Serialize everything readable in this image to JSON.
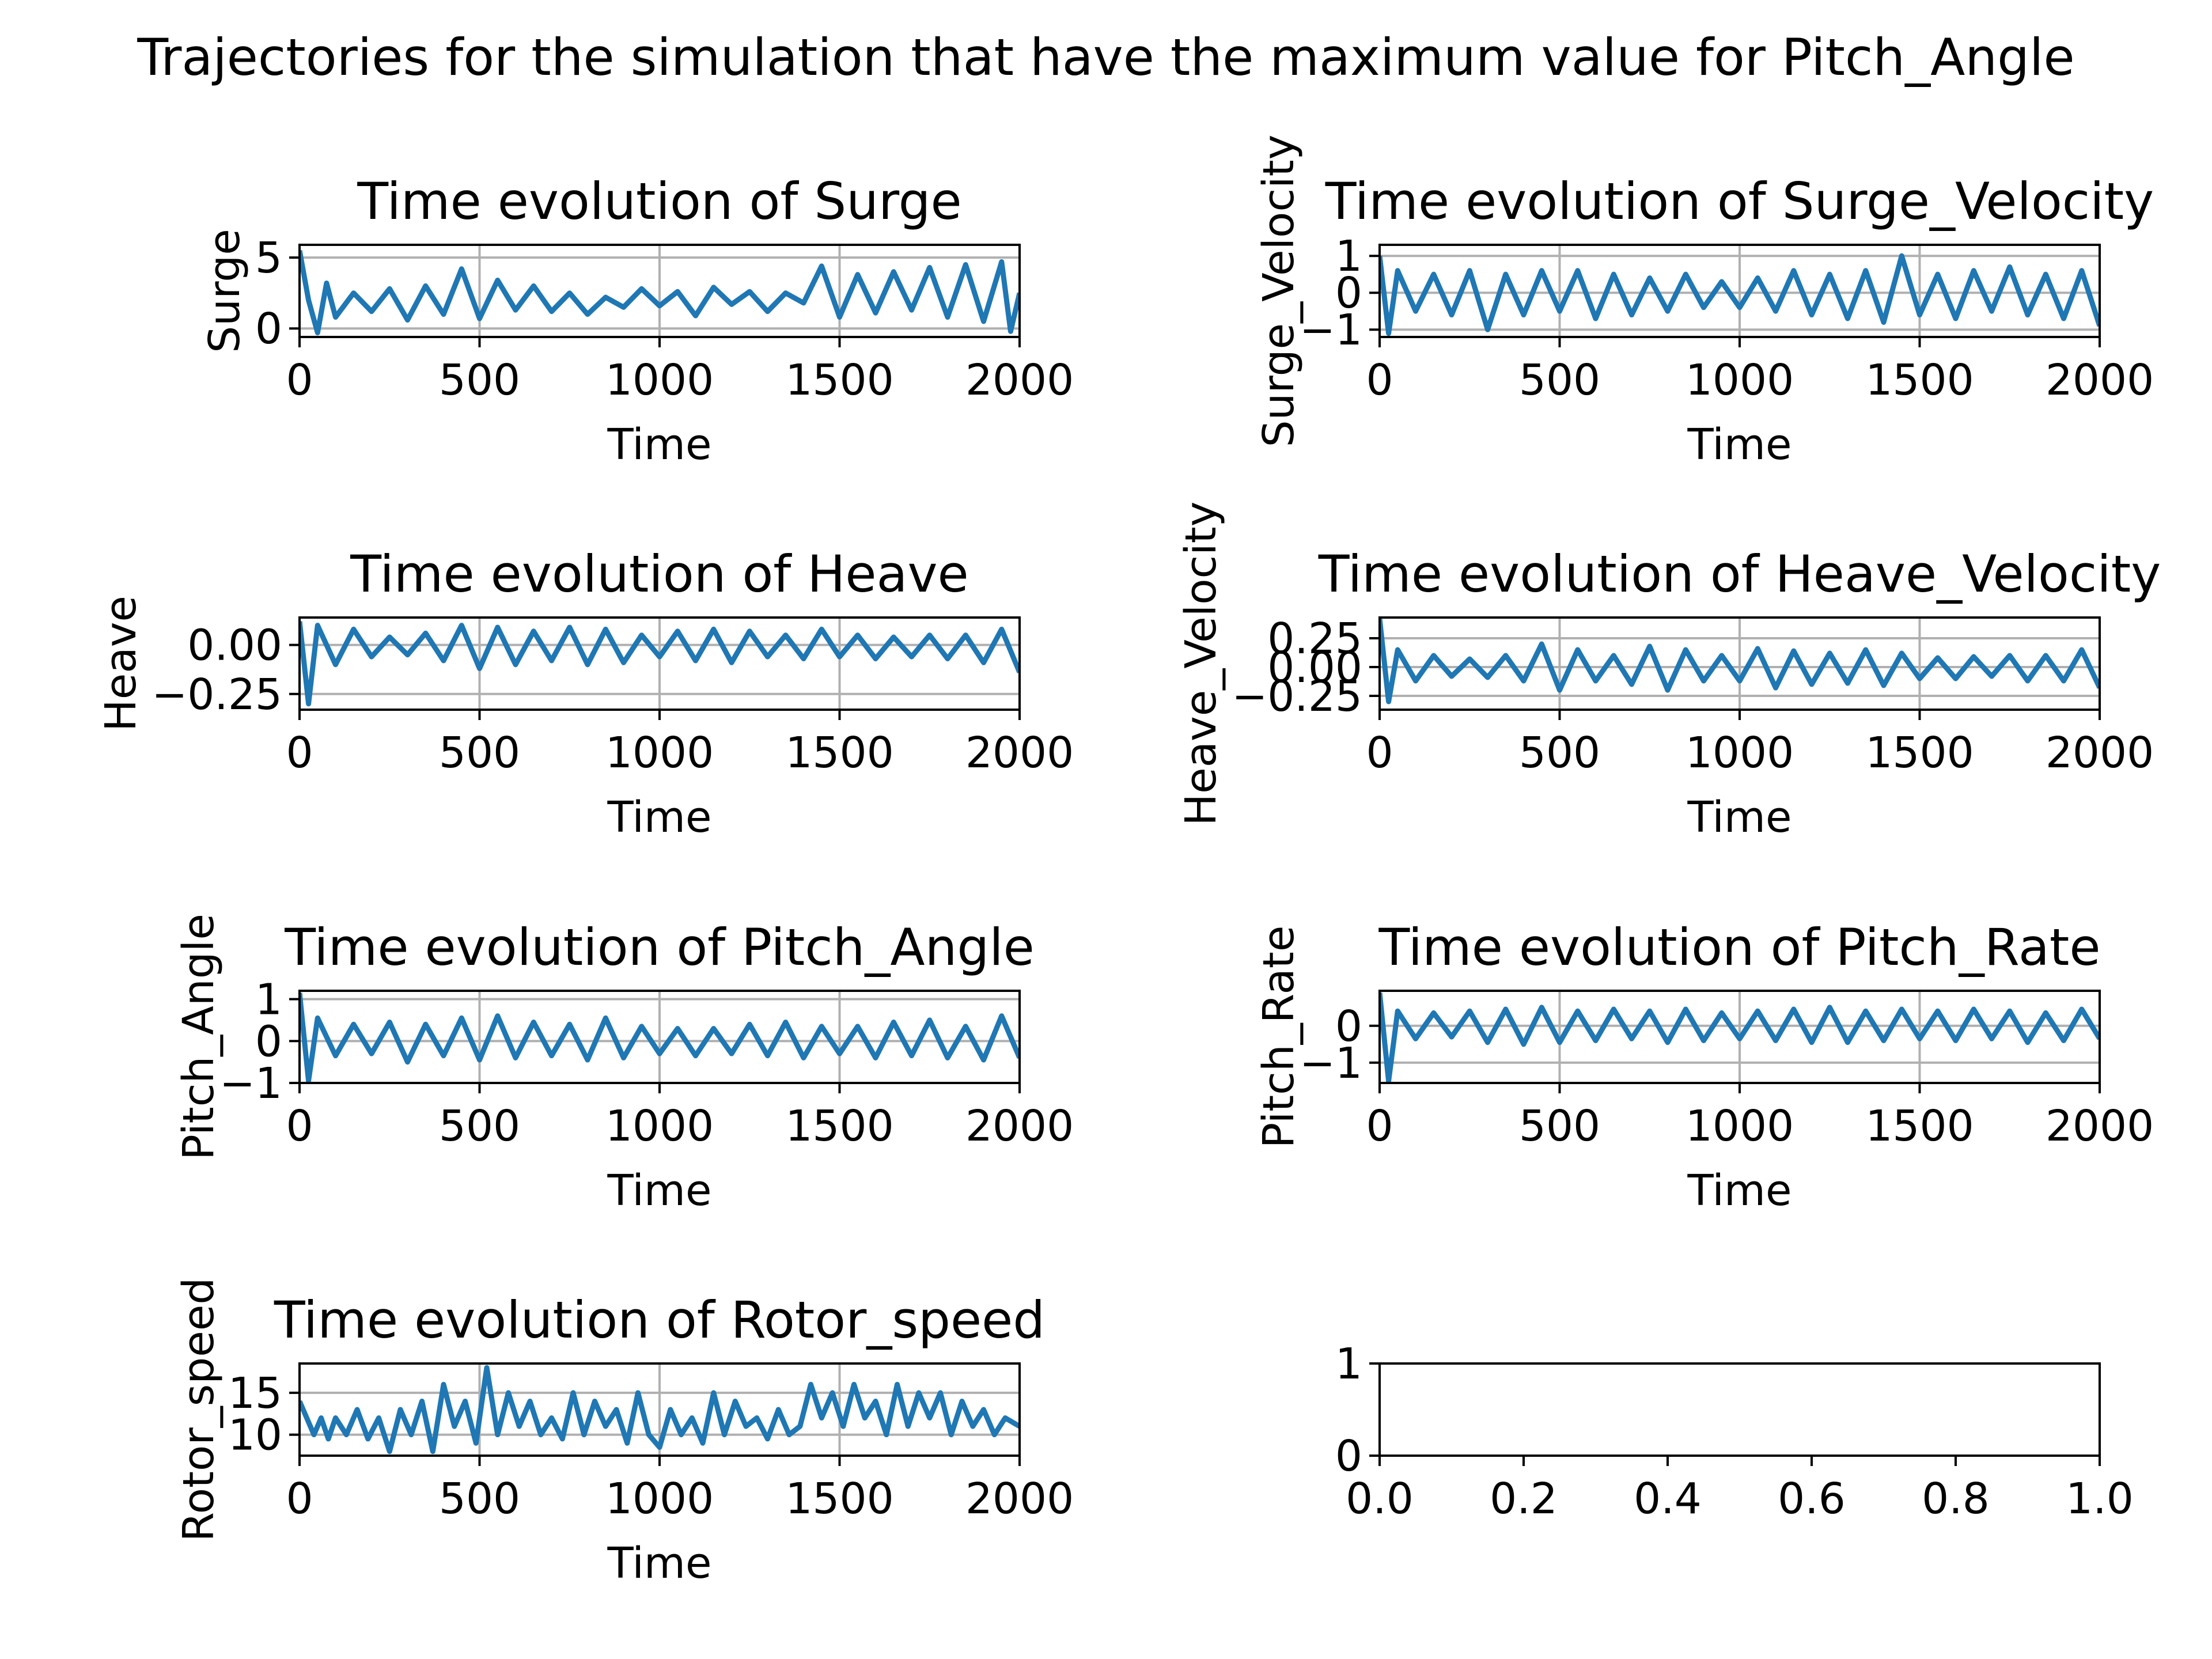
{
  "suptitle": "Trajectories for the simulation that have the maximum value for Pitch_Angle",
  "colors": {
    "line": "#1f77b4",
    "grid": "#b0b0b0",
    "axes": "#000000",
    "background": "#ffffff"
  },
  "chart_data": [
    {
      "type": "line",
      "title": "Time evolution of Surge",
      "xlabel": "Time",
      "ylabel": "Surge",
      "xlim": [
        0,
        2000
      ],
      "ylim": [
        -0.6,
        5.9
      ],
      "xticks": [
        0,
        500,
        1000,
        1500,
        2000
      ],
      "yticks": [
        0,
        5
      ],
      "ytick_labels": [
        "0",
        "5"
      ],
      "grid": true,
      "series": [
        {
          "x": [
            0,
            25,
            50,
            75,
            100,
            150,
            200,
            250,
            300,
            350,
            400,
            450,
            500,
            550,
            600,
            650,
            700,
            750,
            800,
            850,
            900,
            950,
            1000,
            1050,
            1100,
            1150,
            1200,
            1250,
            1300,
            1350,
            1400,
            1450,
            1500,
            1550,
            1600,
            1650,
            1700,
            1750,
            1800,
            1850,
            1900,
            1950,
            1975,
            2000
          ],
          "y": [
            5.5,
            2.0,
            -0.3,
            3.2,
            0.8,
            2.5,
            1.2,
            2.8,
            0.6,
            3.0,
            1.0,
            4.2,
            0.7,
            3.4,
            1.3,
            3.0,
            1.2,
            2.5,
            1.0,
            2.2,
            1.5,
            2.8,
            1.6,
            2.6,
            0.9,
            2.9,
            1.7,
            2.6,
            1.2,
            2.5,
            1.8,
            4.4,
            0.8,
            3.8,
            1.1,
            4.0,
            1.3,
            4.3,
            0.8,
            4.5,
            0.5,
            4.7,
            -0.2,
            2.5
          ]
        }
      ]
    },
    {
      "type": "line",
      "title": "Time evolution of Surge_Velocity",
      "xlabel": "Time",
      "ylabel": "Surge_Velocity",
      "xlim": [
        0,
        2000
      ],
      "ylim": [
        -1.2,
        1.3
      ],
      "xticks": [
        0,
        500,
        1000,
        1500,
        2000
      ],
      "yticks": [
        -1,
        0,
        1
      ],
      "ytick_labels": [
        "−1",
        "0",
        "1"
      ],
      "grid": true,
      "series": [
        {
          "x": [
            0,
            25,
            50,
            100,
            150,
            200,
            250,
            300,
            350,
            400,
            450,
            500,
            550,
            600,
            650,
            700,
            750,
            800,
            850,
            900,
            950,
            1000,
            1050,
            1100,
            1150,
            1200,
            1250,
            1300,
            1350,
            1400,
            1450,
            1500,
            1550,
            1600,
            1650,
            1700,
            1750,
            1800,
            1850,
            1900,
            1950,
            2000
          ],
          "y": [
            1.0,
            -1.1,
            0.6,
            -0.5,
            0.5,
            -0.6,
            0.6,
            -1.0,
            0.5,
            -0.6,
            0.6,
            -0.5,
            0.6,
            -0.7,
            0.5,
            -0.6,
            0.4,
            -0.5,
            0.5,
            -0.4,
            0.3,
            -0.4,
            0.4,
            -0.5,
            0.6,
            -0.6,
            0.5,
            -0.7,
            0.6,
            -0.8,
            1.0,
            -0.6,
            0.5,
            -0.7,
            0.6,
            -0.5,
            0.7,
            -0.6,
            0.5,
            -0.7,
            0.6,
            -0.9
          ]
        }
      ]
    },
    {
      "type": "line",
      "title": "Time evolution of Heave",
      "xlabel": "Time",
      "ylabel": "Heave",
      "xlim": [
        0,
        2000
      ],
      "ylim": [
        -0.33,
        0.14
      ],
      "xticks": [
        0,
        500,
        1000,
        1500,
        2000
      ],
      "yticks": [
        -0.25,
        0.0
      ],
      "ytick_labels": [
        "−0.25",
        "0.00"
      ],
      "grid": true,
      "series": [
        {
          "x": [
            0,
            25,
            50,
            100,
            150,
            200,
            250,
            300,
            350,
            400,
            450,
            500,
            550,
            600,
            650,
            700,
            750,
            800,
            850,
            900,
            950,
            1000,
            1050,
            1100,
            1150,
            1200,
            1250,
            1300,
            1350,
            1400,
            1450,
            1500,
            1550,
            1600,
            1650,
            1700,
            1750,
            1800,
            1850,
            1900,
            1950,
            2000
          ],
          "y": [
            0.12,
            -0.3,
            0.1,
            -0.1,
            0.08,
            -0.06,
            0.04,
            -0.05,
            0.06,
            -0.08,
            0.1,
            -0.12,
            0.09,
            -0.1,
            0.07,
            -0.08,
            0.09,
            -0.1,
            0.08,
            -0.09,
            0.05,
            -0.06,
            0.07,
            -0.08,
            0.08,
            -0.09,
            0.07,
            -0.06,
            0.05,
            -0.07,
            0.08,
            -0.06,
            0.05,
            -0.07,
            0.04,
            -0.06,
            0.05,
            -0.07,
            0.05,
            -0.09,
            0.08,
            -0.14
          ]
        }
      ]
    },
    {
      "type": "line",
      "title": "Time evolution of Heave_Velocity",
      "xlabel": "Time",
      "ylabel": "Heave_Velocity",
      "xlim": [
        0,
        2000
      ],
      "ylim": [
        -0.37,
        0.43
      ],
      "xticks": [
        0,
        500,
        1000,
        1500,
        2000
      ],
      "yticks": [
        -0.25,
        0.0,
        0.25
      ],
      "ytick_labels": [
        "−0.25",
        "0.00",
        "0.25"
      ],
      "grid": true,
      "series": [
        {
          "x": [
            0,
            25,
            50,
            100,
            150,
            200,
            250,
            300,
            350,
            400,
            450,
            500,
            550,
            600,
            650,
            700,
            750,
            800,
            850,
            900,
            950,
            1000,
            1050,
            1100,
            1150,
            1200,
            1250,
            1300,
            1350,
            1400,
            1450,
            1500,
            1550,
            1600,
            1650,
            1700,
            1750,
            1800,
            1850,
            1900,
            1950,
            2000
          ],
          "y": [
            0.42,
            -0.3,
            0.15,
            -0.12,
            0.1,
            -0.08,
            0.07,
            -0.09,
            0.1,
            -0.12,
            0.2,
            -0.2,
            0.15,
            -0.12,
            0.1,
            -0.15,
            0.18,
            -0.2,
            0.15,
            -0.12,
            0.1,
            -0.12,
            0.16,
            -0.18,
            0.14,
            -0.15,
            0.12,
            -0.14,
            0.15,
            -0.16,
            0.12,
            -0.1,
            0.08,
            -0.1,
            0.09,
            -0.08,
            0.1,
            -0.12,
            0.1,
            -0.12,
            0.15,
            -0.18
          ]
        }
      ]
    },
    {
      "type": "line",
      "title": "Time evolution of Pitch_Angle",
      "xlabel": "Time",
      "ylabel": "Pitch_Angle",
      "xlim": [
        0,
        2000
      ],
      "ylim": [
        -1.0,
        1.2
      ],
      "xticks": [
        0,
        500,
        1000,
        1500,
        2000
      ],
      "yticks": [
        -1,
        0,
        1
      ],
      "ytick_labels": [
        "−1",
        "0",
        "1"
      ],
      "grid": true,
      "series": [
        {
          "x": [
            0,
            25,
            50,
            100,
            150,
            200,
            250,
            300,
            350,
            400,
            450,
            500,
            550,
            600,
            650,
            700,
            750,
            800,
            850,
            900,
            950,
            1000,
            1050,
            1100,
            1150,
            1200,
            1250,
            1300,
            1350,
            1400,
            1450,
            1500,
            1550,
            1600,
            1650,
            1700,
            1750,
            1800,
            1850,
            1900,
            1950,
            2000
          ],
          "y": [
            1.15,
            -0.95,
            0.55,
            -0.35,
            0.4,
            -0.3,
            0.45,
            -0.5,
            0.4,
            -0.35,
            0.55,
            -0.45,
            0.6,
            -0.4,
            0.45,
            -0.35,
            0.4,
            -0.45,
            0.55,
            -0.4,
            0.35,
            -0.3,
            0.3,
            -0.35,
            0.3,
            -0.3,
            0.4,
            -0.35,
            0.45,
            -0.4,
            0.35,
            -0.3,
            0.35,
            -0.4,
            0.45,
            -0.35,
            0.5,
            -0.4,
            0.35,
            -0.45,
            0.6,
            -0.4
          ]
        }
      ]
    },
    {
      "type": "line",
      "title": "Time evolution of Pitch_Rate",
      "xlabel": "Time",
      "ylabel": "Pitch_Rate",
      "xlim": [
        0,
        2000
      ],
      "ylim": [
        -1.55,
        0.95
      ],
      "xticks": [
        0,
        500,
        1000,
        1500,
        2000
      ],
      "yticks": [
        -1,
        0
      ],
      "ytick_labels": [
        "−1",
        "0"
      ],
      "grid": true,
      "series": [
        {
          "x": [
            0,
            25,
            50,
            100,
            150,
            200,
            250,
            300,
            350,
            400,
            450,
            500,
            550,
            600,
            650,
            700,
            750,
            800,
            850,
            900,
            950,
            1000,
            1050,
            1100,
            1150,
            1200,
            1250,
            1300,
            1350,
            1400,
            1450,
            1500,
            1550,
            1600,
            1650,
            1700,
            1750,
            1800,
            1850,
            1900,
            1950,
            2000
          ],
          "y": [
            0.9,
            -1.5,
            0.4,
            -0.35,
            0.35,
            -0.3,
            0.4,
            -0.45,
            0.45,
            -0.5,
            0.5,
            -0.45,
            0.4,
            -0.4,
            0.45,
            -0.35,
            0.4,
            -0.45,
            0.45,
            -0.4,
            0.35,
            -0.35,
            0.4,
            -0.4,
            0.45,
            -0.45,
            0.5,
            -0.45,
            0.4,
            -0.4,
            0.45,
            -0.35,
            0.4,
            -0.4,
            0.45,
            -0.35,
            0.4,
            -0.45,
            0.35,
            -0.4,
            0.45,
            -0.35
          ]
        }
      ]
    },
    {
      "type": "line",
      "title": "Time evolution of Rotor_speed",
      "xlabel": "Time",
      "ylabel": "Rotor_speed",
      "xlim": [
        0,
        2000
      ],
      "ylim": [
        7.5,
        18.5
      ],
      "xticks": [
        0,
        500,
        1000,
        1500,
        2000
      ],
      "yticks": [
        10,
        15
      ],
      "ytick_labels": [
        "10",
        "15"
      ],
      "grid": true,
      "series": [
        {
          "x": [
            0,
            20,
            40,
            60,
            80,
            100,
            130,
            160,
            190,
            220,
            250,
            280,
            310,
            340,
            370,
            400,
            430,
            460,
            490,
            520,
            550,
            580,
            610,
            640,
            670,
            700,
            730,
            760,
            790,
            820,
            850,
            880,
            910,
            940,
            970,
            1000,
            1030,
            1060,
            1090,
            1120,
            1150,
            1180,
            1210,
            1240,
            1270,
            1300,
            1330,
            1360,
            1390,
            1420,
            1450,
            1480,
            1510,
            1540,
            1570,
            1600,
            1630,
            1660,
            1690,
            1720,
            1750,
            1780,
            1810,
            1840,
            1870,
            1900,
            1930,
            1960,
            2000
          ],
          "y": [
            14,
            12,
            10,
            12,
            9.5,
            12,
            10,
            13,
            9.5,
            12,
            8,
            13,
            10,
            14,
            8,
            16,
            11,
            14,
            9,
            18,
            10,
            15,
            11,
            14,
            10,
            12,
            9.5,
            15,
            10,
            14,
            11,
            13,
            9,
            15,
            10,
            8.5,
            13,
            10,
            12,
            9,
            15,
            10,
            14,
            11,
            12,
            9.5,
            13,
            10,
            11,
            16,
            12,
            15,
            11,
            16,
            12,
            14,
            10,
            16,
            11,
            15,
            12,
            15,
            10,
            14,
            11,
            13,
            10,
            12,
            11
          ]
        }
      ]
    },
    {
      "type": "line",
      "title": "",
      "xlabel": "",
      "ylabel": "",
      "xlim": [
        0,
        1
      ],
      "ylim": [
        0,
        1
      ],
      "xticks": [
        0.0,
        0.2,
        0.4,
        0.6,
        0.8,
        1.0
      ],
      "xtick_labels": [
        "0.0",
        "0.2",
        "0.4",
        "0.6",
        "0.8",
        "1.0"
      ],
      "yticks": [
        0,
        1
      ],
      "ytick_labels": [
        "0",
        "1"
      ],
      "grid": false,
      "series": []
    }
  ]
}
